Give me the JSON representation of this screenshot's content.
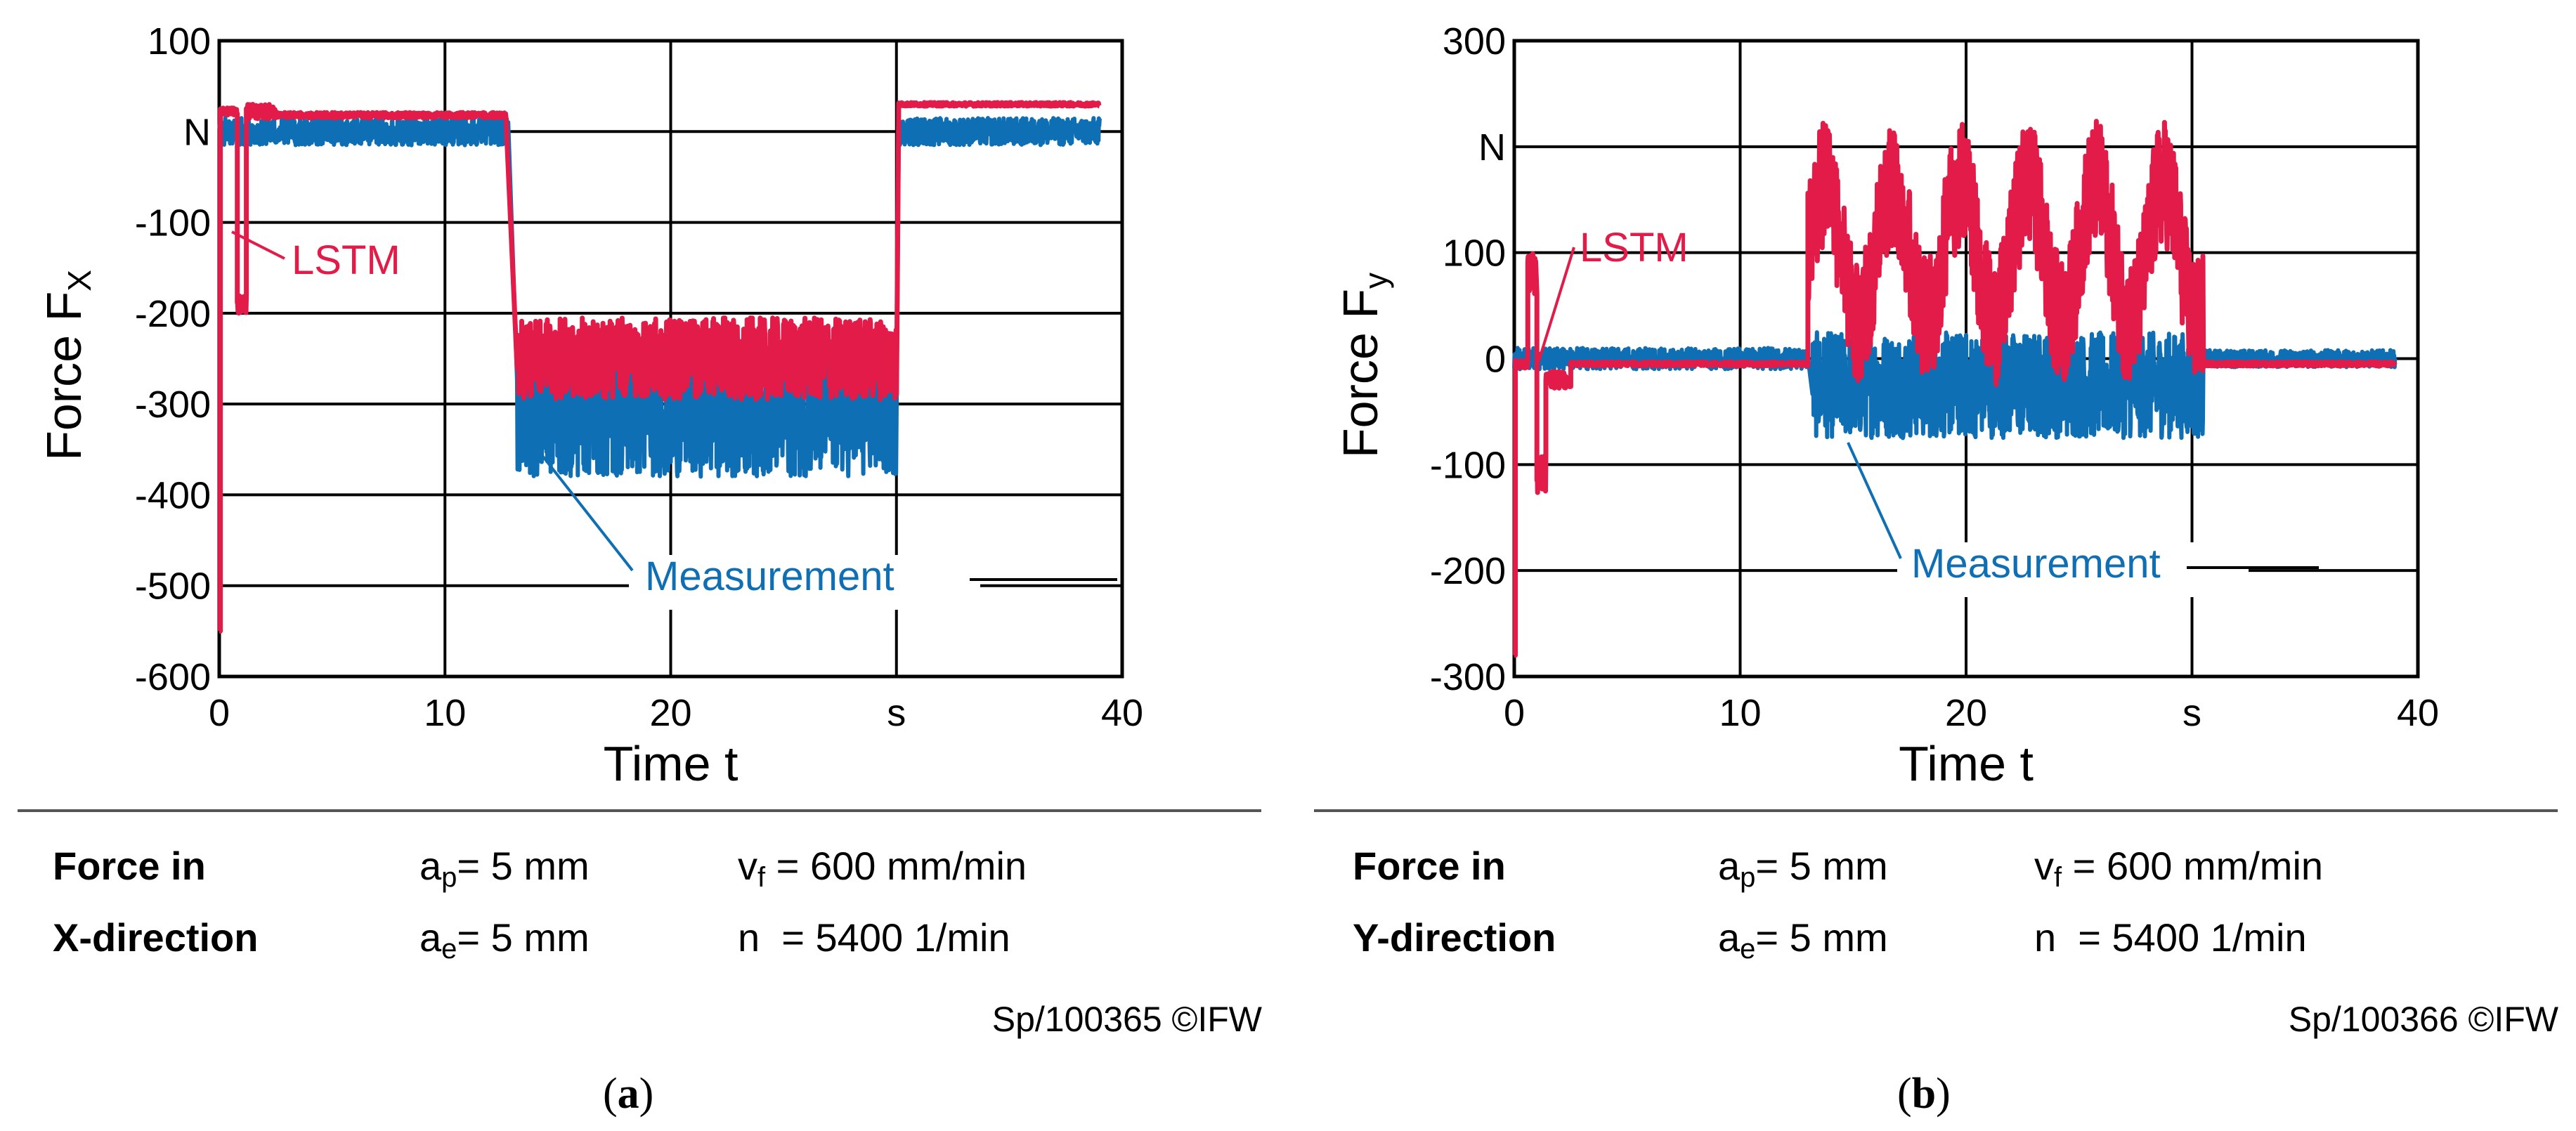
{
  "colors": {
    "lstm": "#e31b48",
    "measurement": "#0f6fb5",
    "grid": "#000000"
  },
  "chart_data": [
    {
      "type": "line",
      "panel": "a",
      "xlabel": "Time t",
      "ylabel_main": "Force F",
      "ylabel_sub": "X",
      "xlim": [
        0,
        40
      ],
      "ylim": [
        -600,
        100
      ],
      "x_ticks": [
        {
          "v": 0,
          "label": "0"
        },
        {
          "v": 10,
          "label": "10"
        },
        {
          "v": 20,
          "label": "20"
        },
        {
          "v": 30,
          "label": "s"
        },
        {
          "v": 40,
          "label": "40"
        }
      ],
      "y_ticks": [
        {
          "v": 100,
          "label": "100"
        },
        {
          "v": 0,
          "label": "N"
        },
        {
          "v": -100,
          "label": "-100"
        },
        {
          "v": -200,
          "label": "-200"
        },
        {
          "v": -300,
          "label": "-300"
        },
        {
          "v": -400,
          "label": "-400"
        },
        {
          "v": -500,
          "label": "-500"
        },
        {
          "v": -600,
          "label": "-600"
        }
      ],
      "series": [
        {
          "name": "LSTM",
          "color": "#e31b48",
          "segments": [
            {
              "t0": 0,
              "t1": 0.05,
              "mean": -550,
              "amp": 0
            },
            {
              "t0": 0.05,
              "t1": 0.8,
              "mean": 22,
              "amp": 4
            },
            {
              "t0": 0.8,
              "t1": 1.2,
              "mean": -190,
              "amp": 10
            },
            {
              "t0": 1.2,
              "t1": 2.5,
              "mean": 22,
              "amp": 8
            },
            {
              "t0": 2.5,
              "t1": 12.7,
              "mean": 18,
              "amp": 3
            },
            {
              "t0": 13.2,
              "t1": 30,
              "mean": -250,
              "amp": 45
            },
            {
              "t0": 30.1,
              "t1": 39,
              "mean": 30,
              "amp": 2
            }
          ]
        },
        {
          "name": "Measurement",
          "color": "#0f6fb5",
          "segments": [
            {
              "t0": 0,
              "t1": 12.8,
              "mean": 0,
              "amp": 15
            },
            {
              "t0": 13.2,
              "t1": 30,
              "mean": -310,
              "amp": 70
            },
            {
              "t0": 30.1,
              "t1": 39,
              "mean": 0,
              "amp": 15
            }
          ]
        }
      ],
      "annotations": [
        {
          "text": "LSTM",
          "series": "LSTM"
        },
        {
          "text": "Measurement",
          "series": "Measurement"
        }
      ]
    },
    {
      "type": "line",
      "panel": "b",
      "xlabel": "Time t",
      "ylabel_main": "Force F",
      "ylabel_sub": "y",
      "xlim": [
        0,
        40
      ],
      "ylim": [
        -300,
        300
      ],
      "x_ticks": [
        {
          "v": 0,
          "label": "0"
        },
        {
          "v": 10,
          "label": "10"
        },
        {
          "v": 20,
          "label": "20"
        },
        {
          "v": 30,
          "label": "s"
        },
        {
          "v": 40,
          "label": "40"
        }
      ],
      "y_ticks": [
        {
          "v": 300,
          "label": "300"
        },
        {
          "v": 200,
          "label": "N"
        },
        {
          "v": 100,
          "label": "100"
        },
        {
          "v": 0,
          "label": "0"
        },
        {
          "v": -100,
          "label": "-100"
        },
        {
          "v": -200,
          "label": "-200"
        },
        {
          "v": -300,
          "label": "-300"
        }
      ],
      "series": [
        {
          "name": "LSTM",
          "color": "#e31b48",
          "segments": [
            {
              "t0": 0,
              "t1": 0.05,
              "mean": -280,
              "amp": 0
            },
            {
              "t0": 0.05,
              "t1": 0.6,
              "mean": -5,
              "amp": 4
            },
            {
              "t0": 0.6,
              "t1": 1.0,
              "mean": 80,
              "amp": 20
            },
            {
              "t0": 1.0,
              "t1": 1.4,
              "mean": -110,
              "amp": 20
            },
            {
              "t0": 1.4,
              "t1": 2.5,
              "mean": -20,
              "amp": 8
            },
            {
              "t0": 2.5,
              "t1": 13.0,
              "mean": -5,
              "amp": 2
            },
            {
              "t0": 13.0,
              "t1": 30.5,
              "mean": 100,
              "amp": 60,
              "wave": 3.0
            },
            {
              "t0": 30.5,
              "t1": 39,
              "mean": -5,
              "amp": 2
            }
          ]
        },
        {
          "name": "Measurement",
          "color": "#0f6fb5",
          "segments": [
            {
              "t0": 0,
              "t1": 13.0,
              "mean": 0,
              "amp": 10
            },
            {
              "t0": 13.2,
              "t1": 30.5,
              "mean": -25,
              "amp": 50
            },
            {
              "t0": 30.5,
              "t1": 39,
              "mean": 0,
              "amp": 8
            }
          ]
        }
      ],
      "annotations": [
        {
          "text": "LSTM",
          "series": "LSTM"
        },
        {
          "text": "Measurement",
          "series": "Measurement"
        }
      ]
    }
  ],
  "captions": [
    {
      "heading_1": "Force in",
      "heading_2": "X-direction",
      "ap_main": "a",
      "ap_sub": "p",
      "ap_value": "= 5 mm",
      "ae_main": "a",
      "ae_sub": "e",
      "ae_value": "= 5 mm",
      "vf_main": "v",
      "vf_sub": "f",
      "vf_value": " = 600 mm/min",
      "n_text": "n  = 5400 1/min",
      "credit": "Sp/100365 ©IFW",
      "panel_label": "a"
    },
    {
      "heading_1": "Force in",
      "heading_2": "Y-direction",
      "ap_main": "a",
      "ap_sub": "p",
      "ap_value": "= 5 mm",
      "ae_main": "a",
      "ae_sub": "e",
      "ae_value": "= 5 mm",
      "vf_main": "v",
      "vf_sub": "f",
      "vf_value": " = 600 mm/min",
      "n_text": "n  = 5400 1/min",
      "credit": "Sp/100366 ©IFW",
      "panel_label": "b"
    }
  ]
}
